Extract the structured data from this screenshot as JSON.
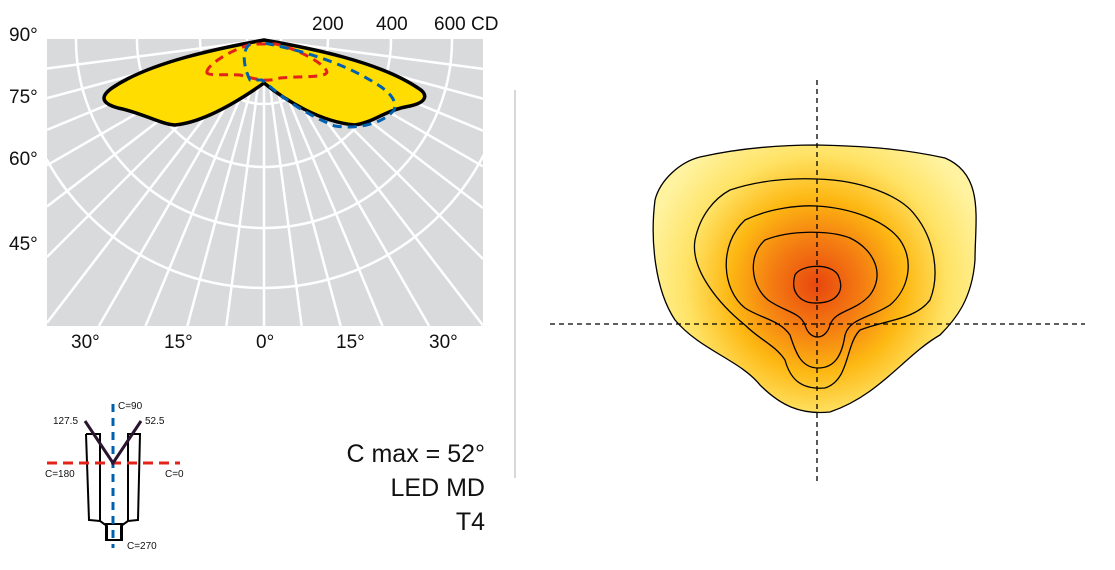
{
  "polar": {
    "intensity_labels": [
      "200",
      "400",
      "600 CD"
    ],
    "angle_labels_left": [
      "90°",
      "75°",
      "60°",
      "45°"
    ],
    "angle_labels_bottom": [
      "30°",
      "15°",
      "0°",
      "15°",
      "30°"
    ],
    "colors": {
      "fill": "#FFDD00",
      "grid_bg": "#D9DADC",
      "outline": "#000000",
      "c0_c180": "#E2231A",
      "c90_c270": "#0060B0"
    }
  },
  "schematic": {
    "labels": {
      "c90": "C=90",
      "c180": "C=180",
      "c0": "C=0",
      "c270": "C=270",
      "left_angle": "127.5",
      "right_angle": "52.5"
    }
  },
  "info": {
    "cmax": "C max = 52°",
    "source": "LED MD",
    "type": "T4"
  },
  "isolux": {
    "colors": {
      "outer": "#FFF3A0",
      "mid": "#FDB813",
      "center": "#E8470E"
    }
  }
}
